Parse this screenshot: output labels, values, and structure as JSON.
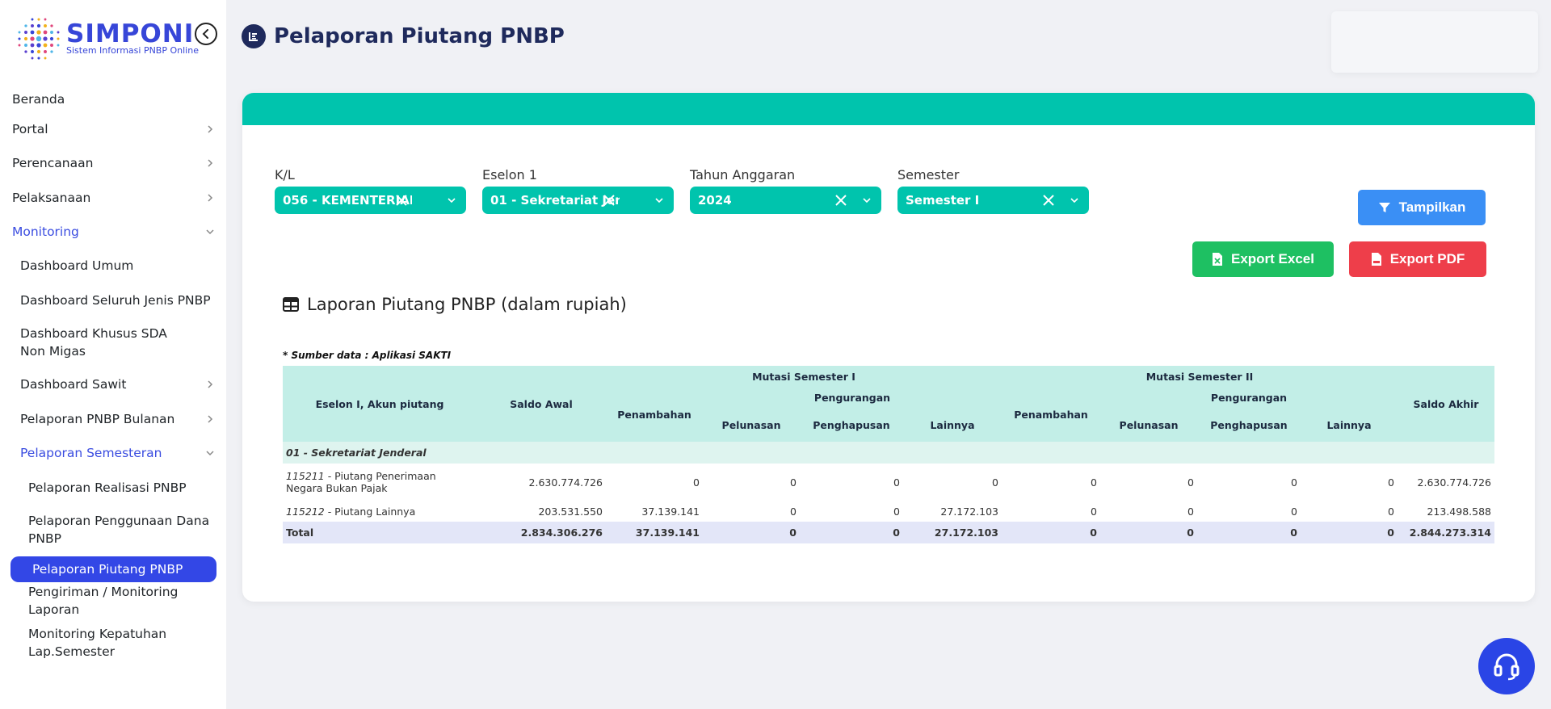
{
  "app": {
    "name": "SIMPONI",
    "subtitle": "Sistem Informasi PNBP Online"
  },
  "sidebar": {
    "items": [
      {
        "label": "Beranda",
        "level": 0
      },
      {
        "label": "Portal",
        "level": 0,
        "chevron": "right"
      },
      {
        "label": "Perencanaan",
        "level": 0,
        "chevron": "right"
      },
      {
        "label": "Pelaksanaan",
        "level": 0,
        "chevron": "right"
      },
      {
        "label": "Monitoring",
        "level": 0,
        "chevron": "down",
        "expanded": true
      },
      {
        "label": "Dashboard Umum",
        "level": 1
      },
      {
        "label": "Dashboard Seluruh Jenis PNBP",
        "level": 1
      },
      {
        "label": "Dashboard Khusus SDA Non Migas",
        "level": 1
      },
      {
        "label": "Dashboard Sawit",
        "level": 1,
        "chevron": "right"
      },
      {
        "label": "Pelaporan PNBP Bulanan",
        "level": 1,
        "chevron": "right"
      },
      {
        "label": "Pelaporan Semesteran",
        "level": 1,
        "chevron": "down",
        "expanded": true
      },
      {
        "label": "Pelaporan Realisasi PNBP",
        "level": 2
      },
      {
        "label": "Pelaporan Penggunaan Dana PNBP",
        "level": 2
      },
      {
        "label": "Pelaporan Piutang PNBP",
        "level": 2,
        "active": true
      },
      {
        "label": "Pengiriman / Monitoring Laporan",
        "level": 2
      },
      {
        "label": "Monitoring Kepatuhan Lap.Semester",
        "level": 2
      }
    ]
  },
  "page": {
    "title": "Pelaporan Piutang PNBP"
  },
  "filters": [
    {
      "label": "K/L",
      "value": "056 - KEMENTERIAN"
    },
    {
      "label": "Eselon 1",
      "value": "01 - Sekretariat Jen"
    },
    {
      "label": "Tahun Anggaran",
      "value": "2024"
    },
    {
      "label": "Semester",
      "value": "Semester I"
    }
  ],
  "buttons": {
    "tampilkan": "Tampilkan",
    "export_excel": "Export Excel",
    "export_pdf": "Export PDF"
  },
  "report": {
    "title": "Laporan Piutang PNBP (dalam rupiah)",
    "source_note": "* Sumber data : Aplikasi SAKTI",
    "headers": {
      "eselon_akun": "Eselon I, Akun piutang",
      "saldo_awal": "Saldo Awal",
      "mutasi_1": "Mutasi Semester I",
      "mutasi_2": "Mutasi Semester II",
      "penambahan": "Penambahan",
      "pengurangan": "Pengurangan",
      "pelunasan": "Pelunasan",
      "penghapusan": "Penghapusan",
      "lainnya": "Lainnya",
      "saldo_akhir": "Saldo Akhir"
    },
    "group": "01 - Sekretariat Jenderal",
    "rows": [
      {
        "code": "115211",
        "name": " - Piutang Penerimaan Negara Bukan Pajak",
        "values": [
          "2.630.774.726",
          "0",
          "0",
          "0",
          "0",
          "0",
          "0",
          "0",
          "0",
          "2.630.774.726"
        ]
      },
      {
        "code": "115212",
        "name": " - Piutang Lainnya",
        "values": [
          "203.531.550",
          "37.139.141",
          "0",
          "0",
          "27.172.103",
          "0",
          "0",
          "0",
          "0",
          "213.498.588"
        ]
      }
    ],
    "total": {
      "label": "Total",
      "values": [
        "2.834.306.276",
        "37.139.141",
        "0",
        "0",
        "27.172.103",
        "0",
        "0",
        "0",
        "0",
        "2.844.273.314"
      ]
    }
  },
  "colors": {
    "accent": "#3347e6",
    "teal": "#00c4ad",
    "title": "#1f2a5c"
  }
}
